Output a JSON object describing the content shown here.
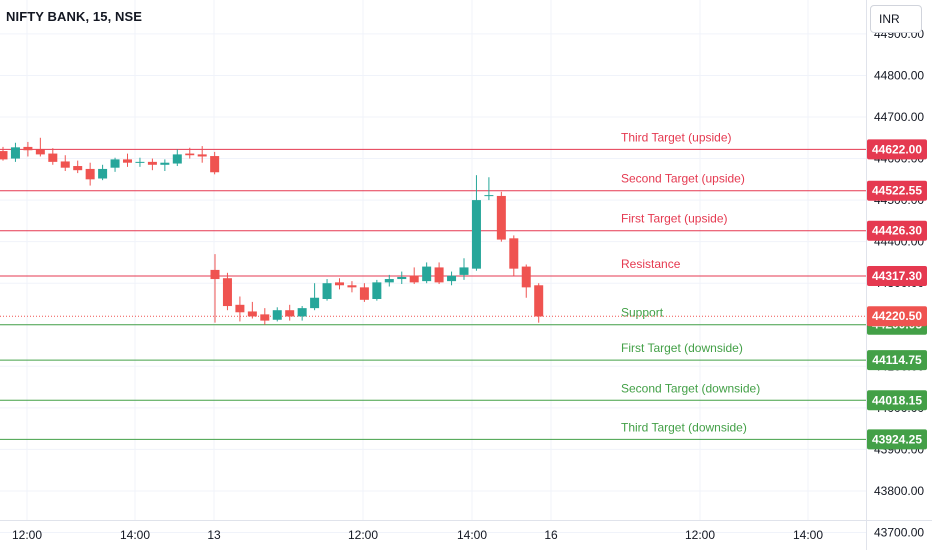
{
  "symbol": "NIFTY BANK, 15, NSE",
  "currency": "INR",
  "colors": {
    "up": "#26a69a",
    "down": "#ef5350",
    "resistance": "#e53950",
    "support": "#43a047",
    "axis_text": "#131722",
    "grid": "#f0f3fa",
    "axis_border": "#e0e3eb"
  },
  "chart_data": {
    "type": "candlestick",
    "y_ticks": [
      "44900.00",
      "44800.00",
      "44700.00",
      "44600.00",
      "44500.00",
      "44400.00",
      "44300.00",
      "44200.00",
      "44100.00",
      "44000.00",
      "43900.00",
      "43800.00",
      "43700.00"
    ],
    "x_ticks": [
      "12:00",
      "14:00",
      "13",
      "12:00",
      "14:00",
      "16",
      "12:00",
      "14:00"
    ],
    "levels": [
      {
        "label": "Third Target (upside)",
        "value": "44622.00",
        "type": "resistance"
      },
      {
        "label": "Second Target (upside)",
        "value": "44522.55",
        "type": "resistance"
      },
      {
        "label": "First Target (upside)",
        "value": "44426.30",
        "type": "resistance"
      },
      {
        "label": "Resistance",
        "value": "44317.30",
        "type": "resistance"
      },
      {
        "label": "Support",
        "value": "44200.05",
        "type": "support"
      },
      {
        "label": "First Target (downside)",
        "value": "44114.75",
        "type": "support"
      },
      {
        "label": "Second Target (downside)",
        "value": "44018.15",
        "type": "support"
      },
      {
        "label": "Third Target (downside)",
        "value": "43924.25",
        "type": "support"
      }
    ],
    "last_price": "44220.50",
    "candles": [
      {
        "day": "12",
        "o": 44618,
        "h": 44628,
        "l": 44595,
        "c": 44598
      },
      {
        "day": "12",
        "o": 44600,
        "h": 44638,
        "l": 44592,
        "c": 44627
      },
      {
        "day": "12",
        "o": 44628,
        "h": 44640,
        "l": 44605,
        "c": 44620
      },
      {
        "day": "12",
        "o": 44622,
        "h": 44650,
        "l": 44605,
        "c": 44610
      },
      {
        "day": "12",
        "o": 44612,
        "h": 44625,
        "l": 44585,
        "c": 44592
      },
      {
        "day": "12",
        "o": 44593,
        "h": 44608,
        "l": 44570,
        "c": 44578
      },
      {
        "day": "12",
        "o": 44582,
        "h": 44595,
        "l": 44565,
        "c": 44572
      },
      {
        "day": "12",
        "o": 44575,
        "h": 44590,
        "l": 44535,
        "c": 44550
      },
      {
        "day": "12",
        "o": 44552,
        "h": 44585,
        "l": 44548,
        "c": 44575
      },
      {
        "day": "12",
        "o": 44578,
        "h": 44602,
        "l": 44568,
        "c": 44598
      },
      {
        "day": "12",
        "o": 44598,
        "h": 44612,
        "l": 44580,
        "c": 44590
      },
      {
        "day": "12",
        "o": 44590,
        "h": 44602,
        "l": 44580,
        "c": 44592
      },
      {
        "day": "12",
        "o": 44592,
        "h": 44600,
        "l": 44572,
        "c": 44585
      },
      {
        "day": "12",
        "o": 44585,
        "h": 44598,
        "l": 44570,
        "c": 44590
      },
      {
        "day": "12",
        "o": 44588,
        "h": 44622,
        "l": 44582,
        "c": 44610
      },
      {
        "day": "12",
        "o": 44612,
        "h": 44626,
        "l": 44600,
        "c": 44608
      },
      {
        "day": "12",
        "o": 44610,
        "h": 44630,
        "l": 44590,
        "c": 44605
      },
      {
        "day": "12",
        "o": 44606,
        "h": 44616,
        "l": 44562,
        "c": 44567
      },
      {
        "day": "13",
        "o": 44332,
        "h": 44370,
        "l": 44205,
        "c": 44310
      },
      {
        "day": "13",
        "o": 44312,
        "h": 44325,
        "l": 44235,
        "c": 44245
      },
      {
        "day": "13",
        "o": 44248,
        "h": 44268,
        "l": 44208,
        "c": 44230
      },
      {
        "day": "13",
        "o": 44232,
        "h": 44255,
        "l": 44215,
        "c": 44220
      },
      {
        "day": "13",
        "o": 44225,
        "h": 44240,
        "l": 44200,
        "c": 44210
      },
      {
        "day": "13",
        "o": 44212,
        "h": 44242,
        "l": 44208,
        "c": 44235
      },
      {
        "day": "13",
        "o": 44235,
        "h": 44248,
        "l": 44210,
        "c": 44220
      },
      {
        "day": "13",
        "o": 44220,
        "h": 44245,
        "l": 44210,
        "c": 44240
      },
      {
        "day": "13",
        "o": 44240,
        "h": 44300,
        "l": 44235,
        "c": 44265
      },
      {
        "day": "13",
        "o": 44262,
        "h": 44310,
        "l": 44258,
        "c": 44300
      },
      {
        "day": "13",
        "o": 44302,
        "h": 44312,
        "l": 44285,
        "c": 44295
      },
      {
        "day": "13",
        "o": 44295,
        "h": 44305,
        "l": 44278,
        "c": 44290
      },
      {
        "day": "13",
        "o": 44290,
        "h": 44300,
        "l": 44255,
        "c": 44260
      },
      {
        "day": "13",
        "o": 44262,
        "h": 44308,
        "l": 44258,
        "c": 44302
      },
      {
        "day": "13",
        "o": 44302,
        "h": 44320,
        "l": 44292,
        "c": 44310
      },
      {
        "day": "13",
        "o": 44310,
        "h": 44328,
        "l": 44298,
        "c": 44315
      },
      {
        "day": "13",
        "o": 44318,
        "h": 44338,
        "l": 44298,
        "c": 44302
      },
      {
        "day": "13",
        "o": 44305,
        "h": 44350,
        "l": 44300,
        "c": 44340
      },
      {
        "day": "13",
        "o": 44338,
        "h": 44350,
        "l": 44298,
        "c": 44302
      },
      {
        "day": "13",
        "o": 44305,
        "h": 44328,
        "l": 44295,
        "c": 44318
      },
      {
        "day": "13",
        "o": 44320,
        "h": 44360,
        "l": 44308,
        "c": 44338
      },
      {
        "day": "13",
        "o": 44335,
        "h": 44560,
        "l": 44330,
        "c": 44500
      },
      {
        "day": "13",
        "o": 44510,
        "h": 44555,
        "l": 44500,
        "c": 44512
      },
      {
        "day": "13",
        "o": 44510,
        "h": 44520,
        "l": 44400,
        "c": 44405
      },
      {
        "day": "13",
        "o": 44408,
        "h": 44415,
        "l": 44318,
        "c": 44335
      },
      {
        "day": "13",
        "o": 44340,
        "h": 44345,
        "l": 44265,
        "c": 44290
      },
      {
        "day": "13",
        "o": 44295,
        "h": 44300,
        "l": 44205,
        "c": 44220
      }
    ]
  }
}
